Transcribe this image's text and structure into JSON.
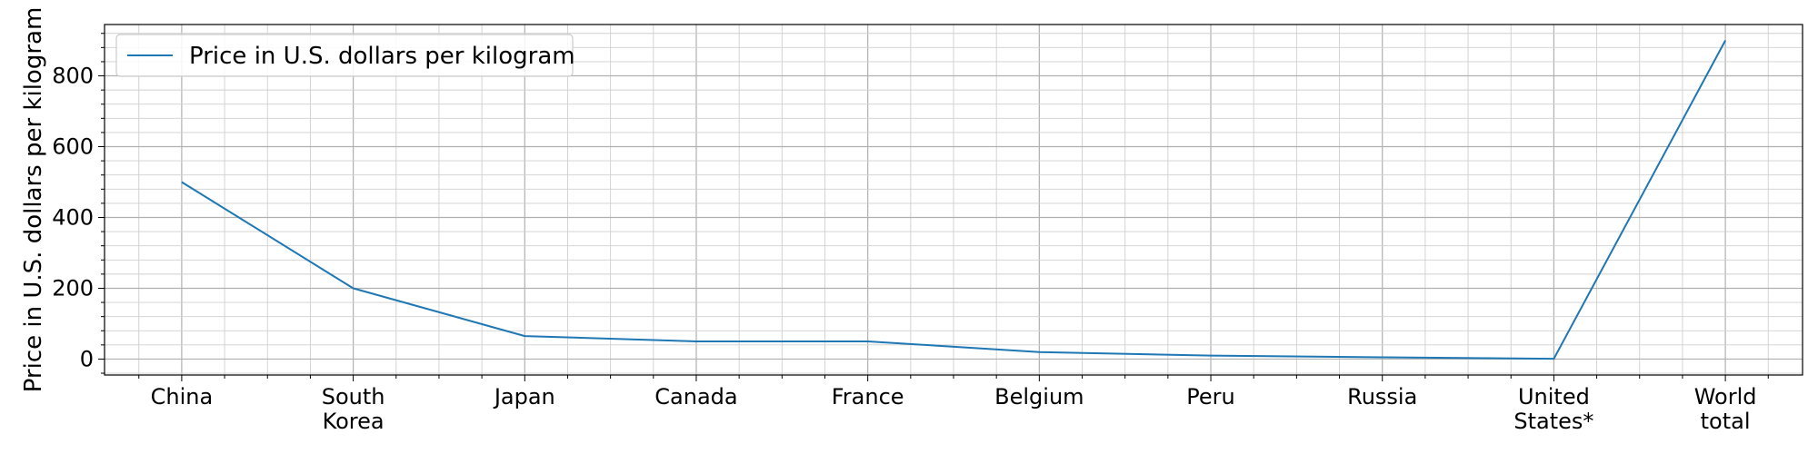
{
  "chart_data": {
    "type": "line",
    "title": "",
    "xlabel": "",
    "ylabel": "Price in U.S. dollars per kilogram",
    "categories": [
      [
        "China"
      ],
      [
        "South",
        "Korea"
      ],
      [
        "Japan"
      ],
      [
        "Canada"
      ],
      [
        "France"
      ],
      [
        "Belgium"
      ],
      [
        "Peru"
      ],
      [
        "Russia"
      ],
      [
        "United",
        "States*"
      ],
      [
        "World",
        "total"
      ]
    ],
    "series": [
      {
        "name": "Price in U.S. dollars per kilogram",
        "color": "#1f77b4",
        "values": [
          500,
          200,
          65,
          50,
          50,
          20,
          10,
          5,
          1,
          900
        ]
      }
    ],
    "ylim": [
      -45,
      945
    ],
    "yticks": [
      0,
      200,
      400,
      600,
      800
    ],
    "grid": true,
    "minor_grid": true,
    "legend": "top-left"
  }
}
